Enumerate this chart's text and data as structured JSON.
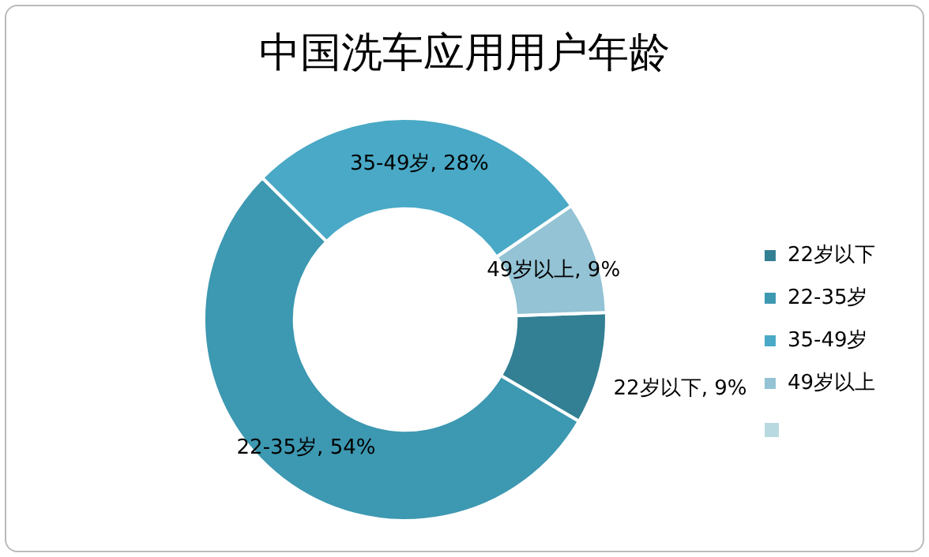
{
  "chart_data": {
    "type": "donut",
    "title": "中国洗车应用用户年龄",
    "categories": [
      "22岁以下",
      "22-35岁",
      "35-49岁",
      "49岁以上"
    ],
    "values": [
      9,
      54,
      28,
      9
    ],
    "colors": [
      "#337f93",
      "#3d98b1",
      "#49a9c6",
      "#93c3d4"
    ],
    "value_labels": [
      "22岁以下, 9%",
      "22-35岁, 54%",
      "35-49岁, 28%",
      "49岁以上, 9%"
    ],
    "legend": "right"
  }
}
